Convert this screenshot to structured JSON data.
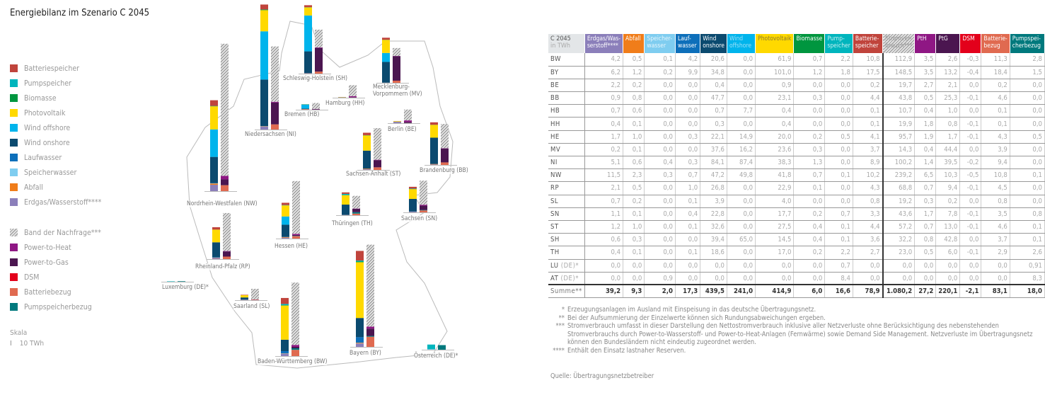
{
  "title": "Energiebilanz im Szenario C 2045",
  "colors": {
    "erdgas": "#8b7fba",
    "abfall": "#f07d1a",
    "speicherwasser": "#7fcdf0",
    "laufwasser": "#0d6fba",
    "wind_onshore": "#0b4a6f",
    "wind_offshore": "#00b4ec",
    "photovoltaik": "#ffd900",
    "biomasse": "#00963f",
    "pumpspeicher": "#00b5bd",
    "batteriespeicher": "#c0443c",
    "stromverbrauch": "hatched-gray",
    "pth": "#8f1784",
    "ptg": "#4b1650",
    "dsm": "#e3001b",
    "batteriebezug": "#e06a50",
    "pumpspeicherbezug": "#00797d"
  },
  "legend": {
    "generation": [
      {
        "label": "Batteriespeicher",
        "color": "#c0443c"
      },
      {
        "label": "Pumpspeicher",
        "color": "#00b5bd"
      },
      {
        "label": "Biomasse",
        "color": "#00963f"
      },
      {
        "label": "Photovoltaik",
        "color": "#ffd900"
      },
      {
        "label": "Wind offshore",
        "color": "#00b4ec"
      },
      {
        "label": "Wind onshore",
        "color": "#0b4a6f"
      },
      {
        "label": "Laufwasser",
        "color": "#0d6fba"
      },
      {
        "label": "Speicherwasser",
        "color": "#7fcdf0"
      },
      {
        "label": "Abfall",
        "color": "#f07d1a"
      },
      {
        "label": "Erdgas/Wasserstoff****",
        "color": "#8b7fba"
      }
    ],
    "demand": [
      {
        "label": "Band der Nachfrage***",
        "color": "hatched-gray"
      },
      {
        "label": "Power-to-Heat",
        "color": "#8f1784"
      },
      {
        "label": "Power-to-Gas",
        "color": "#4b1650"
      },
      {
        "label": "DSM",
        "color": "#e3001b"
      },
      {
        "label": "Batteriebezug",
        "color": "#e06a50"
      },
      {
        "label": "Pumpspeicherbezug",
        "color": "#00797d"
      }
    ]
  },
  "scale": {
    "label": "Skala",
    "value": "10 TWh"
  },
  "map_labels": [
    {
      "code": "SH",
      "label": "Schleswig-Holstein (SH)"
    },
    {
      "code": "MV",
      "label": "Mecklenburg-\nVorpommern (MV)"
    },
    {
      "code": "HH",
      "label": "Hamburg (HH)"
    },
    {
      "code": "HB",
      "label": "Bremen (HB)"
    },
    {
      "code": "NI",
      "label": "Niedersachsen (NI)"
    },
    {
      "code": "BE",
      "label": "Berlin (BE)"
    },
    {
      "code": "NW",
      "label": "Nordrhein-Westfalen (NW)"
    },
    {
      "code": "ST",
      "label": "Sachsen-Anhalt (ST)"
    },
    {
      "code": "BB",
      "label": "Brandenburg (BB)"
    },
    {
      "code": "HE",
      "label": "Hessen (HE)"
    },
    {
      "code": "TH",
      "label": "Thüringen (TH)"
    },
    {
      "code": "SN",
      "label": "Sachsen (SN)"
    },
    {
      "code": "RP",
      "label": "Rheinland-Pfalz (RP)"
    },
    {
      "code": "LU",
      "label": "Luxemburg (DE)*"
    },
    {
      "code": "SL",
      "label": "Saarland (SL)"
    },
    {
      "code": "BW",
      "label": "Baden-Württemberg (BW)"
    },
    {
      "code": "BY",
      "label": "Bayern (BY)"
    },
    {
      "code": "AT",
      "label": "Österreich (DE)*"
    }
  ],
  "table": {
    "corner": {
      "title": "C 2045",
      "unit": "in TWh"
    },
    "columns": [
      {
        "label": "Erdgas/Was-\nserstoff****",
        "bg": "#8b7fba",
        "fg": "#fff"
      },
      {
        "label": "Abfall",
        "bg": "#f07d1a",
        "fg": "#fff"
      },
      {
        "label": "Speicher-\nwasser",
        "bg": "#7fcdf0",
        "fg": "#e8f6fc"
      },
      {
        "label": "Lauf-\nwasser",
        "bg": "#0d6fba",
        "fg": "#fff"
      },
      {
        "label": "Wind\nonshore",
        "bg": "#0b4a6f",
        "fg": "#fff"
      },
      {
        "label": "Wind\noffshore",
        "bg": "#00b4ec",
        "fg": "#9ae0f8"
      },
      {
        "label": "Photovoltaik",
        "bg": "#ffd900",
        "fg": "#8a7a30"
      },
      {
        "label": "Biomasse",
        "bg": "#00963f",
        "fg": "#fff"
      },
      {
        "label": "Pump-\nspeicher",
        "bg": "#00b5bd",
        "fg": "#c8f0f2"
      },
      {
        "label": "Batterie-\nspeicher",
        "bg": "#c0443c",
        "fg": "#fff"
      },
      {
        "label": "Stromver-\nbrauch***",
        "bg": "hatched-gray",
        "fg": "#999"
      },
      {
        "label": "PtH",
        "bg": "#8f1784",
        "fg": "#fff"
      },
      {
        "label": "PtG",
        "bg": "#4b1650",
        "fg": "#fff"
      },
      {
        "label": "DSM",
        "bg": "#e3001b",
        "fg": "#fff"
      },
      {
        "label": "Batterie-\nbezug",
        "bg": "#e06a50",
        "fg": "#fff"
      },
      {
        "label": "Pumpspei-\ncherbezug",
        "bg": "#00797d",
        "fg": "#fff"
      }
    ],
    "rows": [
      {
        "code": "BW",
        "suffix": "",
        "values": [
          "4,2",
          "0,5",
          "0,1",
          "4,2",
          "20,6",
          "0,0",
          "61,9",
          "0,7",
          "2,2",
          "10,8",
          "112,9",
          "3,5",
          "2,6",
          "-0,3",
          "11,3",
          "2,8"
        ]
      },
      {
        "code": "BY",
        "suffix": "",
        "values": [
          "6,2",
          "1,2",
          "0,2",
          "9,9",
          "34,8",
          "0,0",
          "101,0",
          "1,2",
          "1,8",
          "17,5",
          "148,5",
          "3,5",
          "13,2",
          "-0,4",
          "18,4",
          "1,5"
        ]
      },
      {
        "code": "BE",
        "suffix": "",
        "values": [
          "2,2",
          "0,2",
          "0,0",
          "0,0",
          "0,4",
          "0,0",
          "0,9",
          "0,0",
          "0,0",
          "0,2",
          "19,7",
          "2,7",
          "2,1",
          "0,0",
          "0,2",
          "0,0"
        ]
      },
      {
        "code": "BB",
        "suffix": "",
        "values": [
          "0,9",
          "0,8",
          "0,0",
          "0,0",
          "47,7",
          "0,0",
          "23,1",
          "0,3",
          "0,0",
          "4,4",
          "43,8",
          "0,5",
          "25,3",
          "-0,1",
          "4,6",
          "0,0"
        ]
      },
      {
        "code": "HB",
        "suffix": "",
        "values": [
          "0,7",
          "0,6",
          "0,0",
          "0,0",
          "0,7",
          "7,7",
          "0,4",
          "0,0",
          "0,0",
          "0,1",
          "10,7",
          "0,4",
          "1,0",
          "0,0",
          "0,1",
          "0,0"
        ]
      },
      {
        "code": "HH",
        "suffix": "",
        "values": [
          "0,4",
          "0,1",
          "0,0",
          "0,0",
          "0,3",
          "0,0",
          "0,4",
          "0,0",
          "0,0",
          "0,1",
          "19,9",
          "1,8",
          "0,8",
          "-0,1",
          "0,1",
          "0,0"
        ]
      },
      {
        "code": "HE",
        "suffix": "",
        "values": [
          "1,7",
          "1,0",
          "0,0",
          "0,3",
          "22,1",
          "14,9",
          "20,0",
          "0,2",
          "0,5",
          "4,1",
          "95,7",
          "1,9",
          "1,7",
          "-0,1",
          "4,3",
          "0,5"
        ]
      },
      {
        "code": "MV",
        "suffix": "",
        "values": [
          "0,2",
          "0,1",
          "0,0",
          "0,0",
          "37,6",
          "16,2",
          "23,6",
          "0,3",
          "0,0",
          "3,7",
          "14,3",
          "0,4",
          "44,4",
          "0,0",
          "3,9",
          "0,0"
        ]
      },
      {
        "code": "NI",
        "suffix": "",
        "values": [
          "5,1",
          "0,6",
          "0,4",
          "0,3",
          "84,1",
          "87,4",
          "38,3",
          "1,3",
          "0,0",
          "8,9",
          "100,2",
          "1,4",
          "39,5",
          "-0,2",
          "9,4",
          "0,0"
        ]
      },
      {
        "code": "NW",
        "suffix": "",
        "values": [
          "11,5",
          "2,3",
          "0,3",
          "0,7",
          "47,2",
          "49,8",
          "41,8",
          "0,7",
          "0,1",
          "10,2",
          "239,2",
          "6,5",
          "10,3",
          "-0,5",
          "10,8",
          "0,1"
        ]
      },
      {
        "code": "RP",
        "suffix": "",
        "values": [
          "2,1",
          "0,5",
          "0,0",
          "1,0",
          "26,8",
          "0,0",
          "22,9",
          "0,1",
          "0,0",
          "4,3",
          "68,8",
          "0,7",
          "9,4",
          "-0,1",
          "4,5",
          "0,0"
        ]
      },
      {
        "code": "SL",
        "suffix": "",
        "values": [
          "0,7",
          "0,2",
          "0,0",
          "0,1",
          "3,9",
          "0,0",
          "4,0",
          "0,0",
          "0,0",
          "0,8",
          "19,2",
          "0,3",
          "0,2",
          "0,0",
          "0,8",
          "0,0"
        ]
      },
      {
        "code": "SN",
        "suffix": "",
        "values": [
          "1,1",
          "0,1",
          "0,0",
          "0,4",
          "22,8",
          "0,0",
          "17,7",
          "0,2",
          "0,7",
          "3,3",
          "43,6",
          "1,7",
          "7,8",
          "-0,1",
          "3,5",
          "0,8"
        ]
      },
      {
        "code": "ST",
        "suffix": "",
        "values": [
          "1,2",
          "1,0",
          "0,0",
          "0,1",
          "32,6",
          "0,0",
          "27,5",
          "0,4",
          "0,1",
          "4,4",
          "57,2",
          "0,7",
          "13,0",
          "-0,1",
          "4,6",
          "0,1"
        ]
      },
      {
        "code": "SH",
        "suffix": "",
        "values": [
          "0,6",
          "0,3",
          "0,0",
          "0,0",
          "39,4",
          "65,0",
          "14,5",
          "0,4",
          "0,1",
          "3,6",
          "32,2",
          "0,8",
          "42,8",
          "0,0",
          "3,7",
          "0,1"
        ]
      },
      {
        "code": "TH",
        "suffix": "",
        "values": [
          "0,4",
          "0,1",
          "0,0",
          "0,1",
          "18,6",
          "0,0",
          "17,0",
          "0,2",
          "2,2",
          "2,7",
          "23,0",
          "0,5",
          "6,0",
          "-0,1",
          "2,9",
          "2,6"
        ]
      },
      {
        "code": "LU",
        "suffix": "(DE)*",
        "values": [
          "0,0",
          "0,0",
          "0,0",
          "0,0",
          "0,0",
          "0,0",
          "0,0",
          "0,0",
          "0,7",
          "0,0",
          "0,0",
          "0,0",
          "0,0",
          "0,0",
          "0,0",
          "0,91"
        ]
      },
      {
        "code": "AT",
        "suffix": "(DE)*",
        "values": [
          "0,0",
          "0,0",
          "0,9",
          "0,0",
          "0,0",
          "0,0",
          "0,0",
          "0,0",
          "8,4",
          "0,0",
          "0,0",
          "0,0",
          "0,0",
          "0,0",
          "0,0",
          "8,3"
        ]
      }
    ],
    "sum": {
      "label": "Summe**",
      "values": [
        "39,2",
        "9,3",
        "2,0",
        "17,3",
        "439,5",
        "241,0",
        "414,9",
        "6,0",
        "16,6",
        "78,9",
        "1.080,2",
        "27,2",
        "220,1",
        "-2,1",
        "83,1",
        "18,0"
      ]
    }
  },
  "footnotes": [
    {
      "mark": "*",
      "text": "Erzeugungsanlagen im Ausland mit Einspeisung in das deutsche Übertragungsnetz."
    },
    {
      "mark": "**",
      "text": "Bei der Aufsummierung der Einzelwerte können sich Rundungsabweichungen ergeben."
    },
    {
      "mark": "***",
      "text": "Stromverbrauch umfasst in dieser Darstellung den Nettostromverbrauch inklusive aller Netzverluste ohne Berücksichtigung des nebenstehenden Stromverbrauchs durch Power-to-Wasserstoff- und Power-to-Heat-Anlagen (Fernwärme) sowie Demand Side Management. Netzverluste im Übertragungsnetz können den Bundesländern nicht eindeutig zugeordnet werden."
    },
    {
      "mark": "****",
      "text": "Enthält den Einsatz lastnaher Reserven."
    }
  ],
  "source": "Quelle: Übertragungsnetzbetreiber"
}
